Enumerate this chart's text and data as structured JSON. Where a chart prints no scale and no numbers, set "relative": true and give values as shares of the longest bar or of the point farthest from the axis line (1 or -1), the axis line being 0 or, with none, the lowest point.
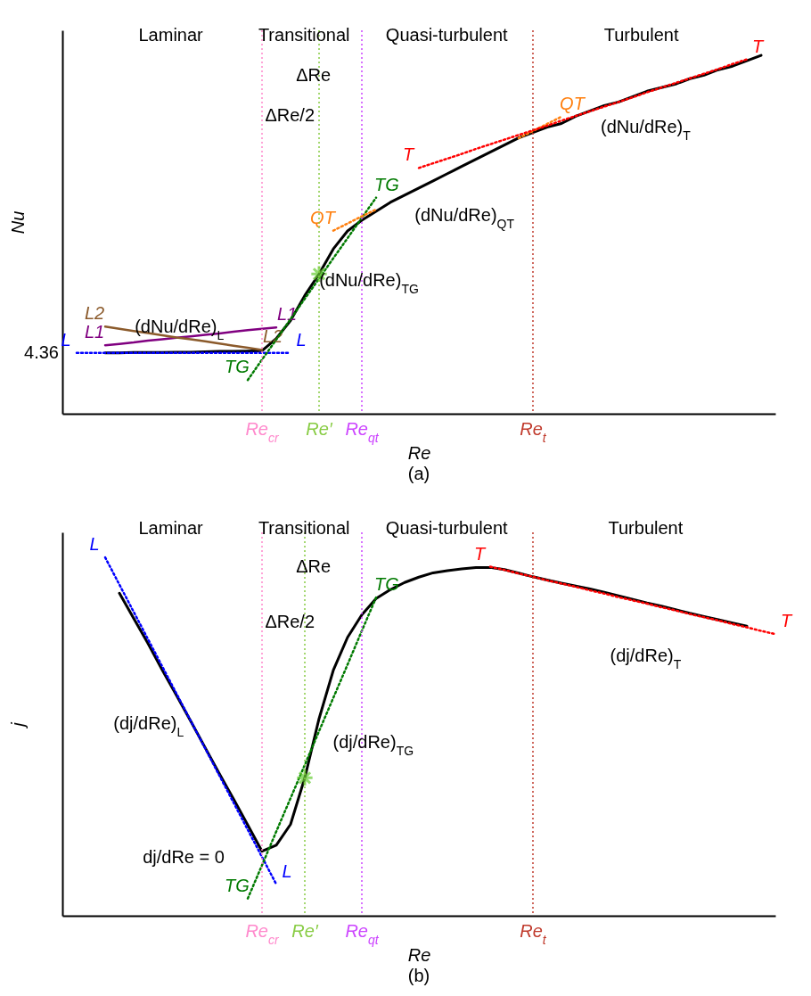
{
  "chart_data": [
    {
      "type": "line",
      "title": "(a)",
      "xlabel": "Re",
      "ylabel": "Nu",
      "relative": true,
      "categories": [
        null,
        null,
        null,
        null,
        null,
        null,
        null,
        null,
        null,
        null,
        null,
        null,
        null,
        null,
        "Re$_{cr}$",
        null,
        null,
        null,
        "Re′",
        null,
        null,
        "Re$_{qt}$",
        null,
        null,
        null,
        null,
        null,
        null,
        null,
        null,
        null,
        null,
        null,
        "Re$_{t}$",
        null,
        null,
        null,
        null,
        null,
        null,
        null,
        null,
        null,
        null,
        null,
        null,
        null,
        null,
        null,
        null,
        null
      ],
      "series": [
        {
          "color": "#000000",
          "line_style": "solid",
          "values": [
            null,
            null,
            null,
            0.17,
            0.17,
            0.171,
            0.171,
            0.171,
            0.172,
            0.172,
            0.173,
            0.174,
            0.174,
            0.175,
            0.176,
            0.21,
            0.26,
            0.33,
            0.39,
            0.46,
            0.51,
            0.54,
            0.565,
            0.59,
            0.61,
            0.63,
            0.65,
            0.67,
            0.69,
            0.71,
            0.73,
            0.75,
            0.77,
            0.785,
            0.8,
            0.81,
            0.83,
            0.845,
            0.86,
            0.87,
            0.885,
            0.9,
            0.91,
            0.92,
            0.935,
            0.945,
            0.96,
            0.97,
            0.985,
            1.0,
            null
          ]
        },
        {
          "name": "L",
          "color": "#0000ff",
          "line_style": "dotted",
          "values": [
            null,
            0.17,
            0.17,
            0.17,
            0.17,
            0.17,
            0.17,
            0.17,
            0.17,
            0.17,
            0.17,
            0.17,
            0.17,
            0.17,
            0.17,
            0.17,
            0.17,
            null,
            null,
            null,
            null,
            null,
            null,
            null,
            null,
            null,
            null,
            null,
            null,
            null,
            null,
            null,
            null,
            null,
            null,
            null,
            null,
            null,
            null,
            null,
            null,
            null,
            null,
            null,
            null,
            null,
            null,
            null,
            null,
            null,
            null
          ]
        },
        {
          "name": "L1",
          "color": "#800080",
          "line_style": "solid",
          "values": [
            null,
            null,
            null,
            0.191,
            0.195,
            0.199,
            0.204,
            0.208,
            0.212,
            0.216,
            0.22,
            0.224,
            0.229,
            0.233,
            0.237,
            0.241,
            null,
            null,
            null,
            null,
            null,
            null,
            null,
            null,
            null,
            null,
            null,
            null,
            null,
            null,
            null,
            null,
            null,
            null,
            null,
            null,
            null,
            null,
            null,
            null,
            null,
            null,
            null,
            null,
            null,
            null,
            null,
            null,
            null,
            null,
            null
          ]
        },
        {
          "name": "L2",
          "color": "#8b5a2b",
          "line_style": "solid",
          "values": [
            null,
            null,
            null,
            0.243,
            0.237,
            0.231,
            0.225,
            0.219,
            0.213,
            0.208,
            0.202,
            0.196,
            0.19,
            0.184,
            0.178,
            null,
            null,
            null,
            null,
            null,
            null,
            null,
            null,
            null,
            null,
            null,
            null,
            null,
            null,
            null,
            null,
            null,
            null,
            null,
            null,
            null,
            null,
            null,
            null,
            null,
            null,
            null,
            null,
            null,
            null,
            null,
            null,
            null,
            null,
            null,
            null
          ]
        },
        {
          "name": "TG",
          "color": "#007a00",
          "line_style": "dotted",
          "values": [
            null,
            null,
            null,
            null,
            null,
            null,
            null,
            null,
            null,
            null,
            null,
            null,
            null,
            0.094,
            0.151,
            0.207,
            0.264,
            0.321,
            0.377,
            0.434,
            0.49,
            0.547,
            0.603,
            null,
            null,
            null,
            null,
            null,
            null,
            null,
            null,
            null,
            null,
            null,
            null,
            null,
            null,
            null,
            null,
            null,
            null,
            null,
            null,
            null,
            null,
            null,
            null,
            null,
            null,
            null,
            null
          ]
        },
        {
          "name": "QT",
          "color": "#ff7f0e",
          "line_style": "dotted",
          "values": [
            null,
            null,
            null,
            null,
            null,
            null,
            null,
            null,
            null,
            null,
            null,
            null,
            null,
            null,
            null,
            null,
            null,
            null,
            null,
            0.511,
            0.531,
            0.551,
            0.57,
            null,
            null,
            null,
            null,
            null,
            null,
            null,
            null,
            null,
            0.769,
            0.789,
            0.809,
            0.829,
            null,
            null,
            null,
            null,
            null,
            null,
            null,
            null,
            null,
            null,
            null,
            null,
            null,
            null,
            null
          ]
        },
        {
          "name": "T",
          "color": "#ff0000",
          "line_style": "dotted",
          "values": [
            null,
            null,
            null,
            null,
            null,
            null,
            null,
            null,
            null,
            null,
            null,
            null,
            null,
            null,
            null,
            null,
            null,
            null,
            null,
            null,
            null,
            null,
            null,
            null,
            null,
            0.686,
            0.699,
            0.712,
            0.725,
            0.739,
            0.752,
            0.765,
            0.778,
            0.791,
            0.804,
            0.818,
            0.831,
            0.844,
            0.857,
            0.87,
            0.883,
            0.897,
            0.91,
            0.923,
            0.936,
            0.949,
            0.962,
            0.976,
            0.989,
            null,
            null
          ]
        },
        {
          "type": "scatter",
          "marker": "cross",
          "color": "#66cc33",
          "x": [
            "Re′"
          ],
          "values": [
            0.39
          ]
        }
      ],
      "ref_lines": [
        {
          "axis": "x",
          "value": "Re$_{cr}$",
          "color": "#ff88cc",
          "line_style": "dotted"
        },
        {
          "axis": "x",
          "value": "Re′",
          "color": "#88cc44",
          "line_style": "dotted"
        },
        {
          "axis": "x",
          "value": "Re$_{qt}$",
          "color": "#cc44ff",
          "line_style": "dotted"
        },
        {
          "axis": "x",
          "value": "Re$_{t}$",
          "color": "#c0392b",
          "line_style": "dotted"
        }
      ],
      "annotations": [
        "Laminar",
        "Transitional",
        "Quasi-turbulent",
        "Turbulent",
        "ΔRe",
        "ΔRe/2",
        "(dNu/dRe)$_{L}$",
        "(dNu/dRe)$_{TG}$",
        "(dNu/dRe)$_{QT}$",
        "(dNu/dRe)$_{T}$",
        "4.36"
      ]
    },
    {
      "type": "line",
      "title": "(b)",
      "xlabel": "Re",
      "ylabel": "j",
      "relative": true,
      "categories": [
        null,
        null,
        null,
        null,
        null,
        null,
        null,
        null,
        null,
        null,
        null,
        null,
        null,
        null,
        "Re$_{cr}$",
        null,
        null,
        "Re′",
        null,
        null,
        null,
        "Re$_{qt}$",
        null,
        null,
        null,
        null,
        null,
        null,
        null,
        null,
        null,
        null,
        null,
        "Re$_{t}$",
        null,
        null,
        null,
        null,
        null,
        null,
        null,
        null,
        null,
        null,
        null,
        null,
        null,
        null,
        null,
        null,
        null
      ],
      "series": [
        {
          "color": "#000000",
          "line_style": "solid",
          "values": [
            null,
            null,
            null,
            null,
            0.9,
            0.83,
            0.76,
            0.686,
            0.615,
            0.543,
            0.47,
            0.397,
            0.326,
            0.253,
            0.18,
            0.197,
            0.255,
            0.385,
            0.55,
            0.685,
            0.777,
            0.84,
            0.885,
            0.91,
            0.93,
            0.945,
            0.957,
            0.963,
            0.968,
            0.972,
            0.972,
            0.966,
            0.956,
            0.946,
            0.937,
            0.928,
            0.92,
            0.912,
            0.903,
            0.893,
            0.883,
            0.873,
            0.864,
            0.854,
            0.844,
            0.835,
            0.826,
            0.817,
            0.808,
            null,
            null
          ]
        },
        {
          "name": "L",
          "color": "#0000ff",
          "line_style": "dotted",
          "values": [
            null,
            null,
            null,
            1.0,
            0.924,
            0.848,
            0.772,
            0.696,
            0.62,
            0.544,
            0.468,
            0.392,
            0.316,
            0.24,
            0.164,
            0.088,
            null,
            null,
            null,
            null,
            null,
            null,
            null,
            null,
            null,
            null,
            null,
            null,
            null,
            null,
            null,
            null,
            null,
            null,
            null,
            null,
            null,
            null,
            null,
            null,
            null,
            null,
            null,
            null,
            null,
            null,
            null,
            null,
            null,
            null,
            null
          ]
        },
        {
          "name": "TG",
          "color": "#007a00",
          "line_style": "dotted",
          "values": [
            null,
            null,
            null,
            null,
            null,
            null,
            null,
            null,
            null,
            null,
            null,
            null,
            null,
            0.048,
            0.141,
            0.235,
            0.328,
            0.421,
            0.515,
            0.608,
            0.701,
            0.795,
            0.888,
            null,
            null,
            null,
            null,
            null,
            null,
            null,
            null,
            null,
            null,
            null,
            null,
            null,
            null,
            null,
            null,
            null,
            null,
            null,
            null,
            null,
            null,
            null,
            null,
            null,
            null,
            null,
            null
          ]
        },
        {
          "name": "T",
          "color": "#ff0000",
          "line_style": "dotted",
          "values": [
            null,
            null,
            null,
            null,
            null,
            null,
            null,
            null,
            null,
            null,
            null,
            null,
            null,
            null,
            null,
            null,
            null,
            null,
            null,
            null,
            null,
            null,
            null,
            null,
            null,
            null,
            null,
            null,
            null,
            null,
            0.974,
            0.965,
            0.955,
            0.946,
            0.936,
            0.927,
            0.918,
            0.908,
            0.899,
            0.889,
            0.88,
            0.871,
            0.861,
            0.852,
            0.842,
            0.833,
            0.824,
            0.814,
            0.805,
            0.795,
            0.786
          ]
        },
        {
          "type": "scatter",
          "marker": "cross",
          "color": "#66cc33",
          "x": [
            "Re′"
          ],
          "values": [
            0.385
          ]
        }
      ],
      "ref_lines": [
        {
          "axis": "x",
          "value": "Re$_{cr}$",
          "color": "#ff88cc",
          "line_style": "dotted"
        },
        {
          "axis": "x",
          "value": "Re′",
          "color": "#88cc44",
          "line_style": "dotted"
        },
        {
          "axis": "x",
          "value": "Re$_{qt}$",
          "color": "#cc44ff",
          "line_style": "dotted"
        },
        {
          "axis": "x",
          "value": "Re$_{t}$",
          "color": "#c0392b",
          "line_style": "dotted"
        }
      ],
      "annotations": [
        "Laminar",
        "Transitional",
        "Quasi-turbulent",
        "Turbulent",
        "ΔRe",
        "ΔRe/2",
        "(dj/dRe)$_{L}$",
        "(dj/dRe)$_{TG}$",
        "(dj/dRe)$_{T}$",
        "dj/dRe = 0"
      ]
    }
  ]
}
